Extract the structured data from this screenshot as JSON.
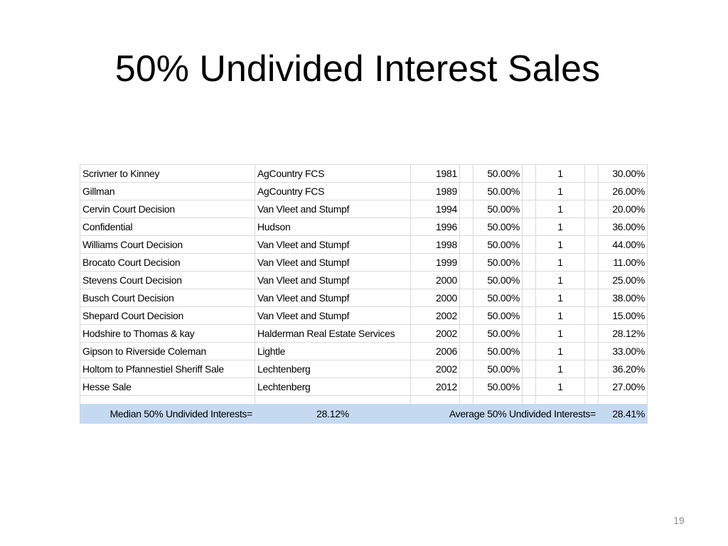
{
  "title": "50% Undivided Interest Sales",
  "page_number": "19",
  "colors": {
    "summary_row_background": "#c5d9f1",
    "grid_line": "#d9d9d9",
    "page_number": "#8c8c8c"
  },
  "rows": [
    {
      "name": "Scrivner to Kinney",
      "source": "AgCountry FCS",
      "year": "1981",
      "interest": "50.00%",
      "count": "1",
      "discount": "30.00%"
    },
    {
      "name": "Gillman",
      "source": "AgCountry FCS",
      "year": "1989",
      "interest": "50.00%",
      "count": "1",
      "discount": "26.00%"
    },
    {
      "name": "Cervin Court Decision",
      "source": "Van Vleet and Stumpf",
      "year": "1994",
      "interest": "50.00%",
      "count": "1",
      "discount": "20.00%"
    },
    {
      "name": "Confidential",
      "source": "Hudson",
      "year": "1996",
      "interest": "50.00%",
      "count": "1",
      "discount": "36.00%"
    },
    {
      "name": "Williams Court Decision",
      "source": "Van Vleet and Stumpf",
      "year": "1998",
      "interest": "50.00%",
      "count": "1",
      "discount": "44.00%"
    },
    {
      "name": "Brocato Court Decision",
      "source": "Van Vleet and Stumpf",
      "year": "1999",
      "interest": "50.00%",
      "count": "1",
      "discount": "11.00%"
    },
    {
      "name": "Stevens Court Decision",
      "source": "Van Vleet and Stumpf",
      "year": "2000",
      "interest": "50.00%",
      "count": "1",
      "discount": "25.00%"
    },
    {
      "name": "Busch Court Decision",
      "source": "Van Vleet and Stumpf",
      "year": "2000",
      "interest": "50.00%",
      "count": "1",
      "discount": "38.00%"
    },
    {
      "name": "Shepard Court Decision",
      "source": "Van Vleet and Stumpf",
      "year": "2002",
      "interest": "50.00%",
      "count": "1",
      "discount": "15.00%"
    },
    {
      "name": "Hodshire to Thomas & kay",
      "source": "Halderman Real Estate Services",
      "year": "2002",
      "interest": "50.00%",
      "count": "1",
      "discount": "28.12%"
    },
    {
      "name": "Gipson to Riverside Coleman",
      "source": "Lightle",
      "year": "2006",
      "interest": "50.00%",
      "count": "1",
      "discount": "33.00%"
    },
    {
      "name": "Holtom to Pfannestiel Sheriff Sale",
      "source": "Lechtenberg",
      "year": "2002",
      "interest": "50.00%",
      "count": "1",
      "discount": "36.20%"
    },
    {
      "name": "Hesse Sale",
      "source": "Lechtenberg",
      "year": "2012",
      "interest": "50.00%",
      "count": "1",
      "discount": "27.00%"
    }
  ],
  "summary": {
    "median_label": "Median 50% Undivided Interests=",
    "median_value": "28.12%",
    "average_label": "Average 50% Undivided Interests=",
    "average_value": "28.41%"
  }
}
